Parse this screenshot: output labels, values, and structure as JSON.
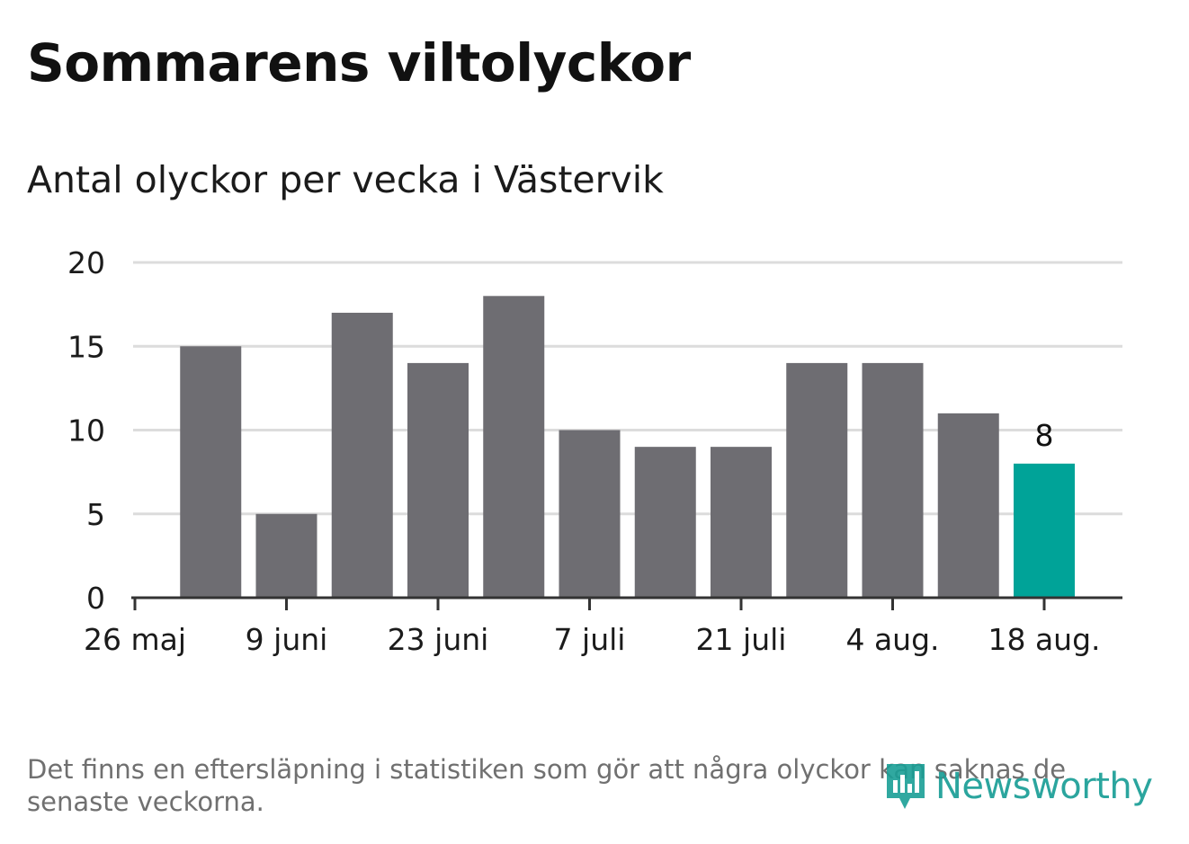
{
  "title": "Sommarens viltolyckor",
  "subtitle": "Antal olyckor per vecka i Västervik",
  "footnote": "Det finns en eftersläpning i statistiken som gör att några olyckor kan saknas de senaste veckorna.",
  "logo": {
    "text": "Newsworthy",
    "icon": "newsworthy-logo-icon"
  },
  "colors": {
    "bar": "#6e6d72",
    "highlight": "#00a398",
    "grid": "#dcdcdc",
    "axis": "#333333",
    "text": "#1b1b1b",
    "muted": "#707070",
    "brand": "#1a9e96"
  },
  "chart_data": {
    "type": "bar",
    "title": "Antal olyckor per vecka i Västervik",
    "xlabel": "",
    "ylabel": "",
    "ylim": [
      0,
      20
    ],
    "yticks": [
      0,
      5,
      10,
      15,
      20
    ],
    "grid": true,
    "legend": "none",
    "x_tick_labels": [
      "26 maj",
      "9 juni",
      "23 juni",
      "7 juli",
      "21 juli",
      "4 aug.",
      "18 aug."
    ],
    "values": [
      15,
      5,
      17,
      14,
      18,
      10,
      9,
      9,
      14,
      14,
      11,
      8
    ],
    "highlight_index": 11,
    "data_labels": [
      {
        "index": 11,
        "text": "8"
      }
    ]
  }
}
